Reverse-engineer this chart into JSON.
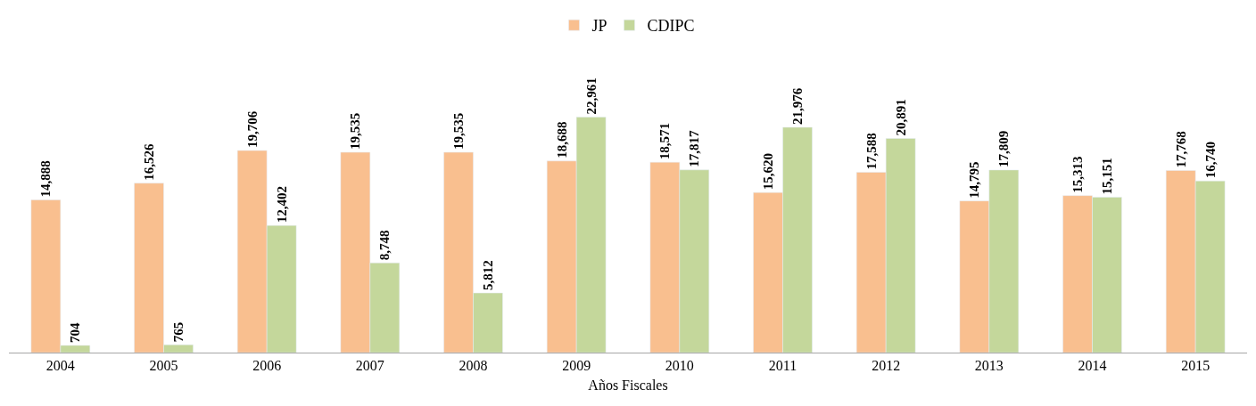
{
  "chart_data": {
    "type": "bar",
    "xlabel": "Años Fiscales",
    "categories": [
      "2004",
      "2005",
      "2006",
      "2007",
      "2008",
      "2009",
      "2010",
      "2011",
      "2012",
      "2013",
      "2014",
      "2015"
    ],
    "series": [
      {
        "name": "JP",
        "color": "#f9bf8f",
        "values": [
          14888,
          16526,
          19706,
          19535,
          19535,
          18688,
          18571,
          15620,
          17588,
          14795,
          15313,
          17768
        ],
        "value_labels": [
          "14,888",
          "16,526",
          "19,706",
          "19,535",
          "19,535",
          "18,688",
          "18,571",
          "15,620",
          "17,588",
          "14,795",
          "15,313",
          "17,768"
        ]
      },
      {
        "name": "CDIPC",
        "color": "#c4d79b",
        "values": [
          704,
          765,
          12402,
          8748,
          5812,
          22961,
          17817,
          21976,
          20891,
          17809,
          15151,
          16740
        ],
        "value_labels": [
          "704",
          "765",
          "12,402",
          "8,748",
          "5,812",
          "22,961",
          "17,817",
          "21,976",
          "20,891",
          "17,809",
          "15,151",
          "16,740"
        ]
      }
    ],
    "legend": "top"
  }
}
